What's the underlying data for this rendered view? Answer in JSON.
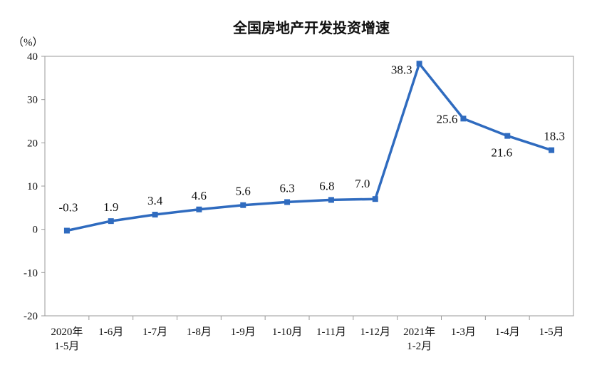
{
  "chart_data": {
    "type": "line",
    "title": "全国房地产开发投资增速",
    "ylabel": "（%）",
    "xlabel": "",
    "ylim": [
      -20,
      40
    ],
    "yticks": [
      40,
      30,
      20,
      10,
      0,
      -10,
      -20
    ],
    "grid": false,
    "legend": "none",
    "categories": [
      [
        "2020年",
        "1-5月"
      ],
      [
        "1-6月"
      ],
      [
        "1-7月"
      ],
      [
        "1-8月"
      ],
      [
        "1-9月"
      ],
      [
        "1-10月"
      ],
      [
        "1-11月"
      ],
      [
        "1-12月"
      ],
      [
        "2021年",
        "1-2月"
      ],
      [
        "1-3月"
      ],
      [
        "1-4月"
      ],
      [
        "1-5月"
      ]
    ],
    "series": [
      {
        "values": [
          -0.3,
          1.9,
          3.4,
          4.6,
          5.6,
          6.3,
          6.8,
          7.0,
          38.3,
          25.6,
          21.6,
          18.3
        ],
        "labels": [
          "-0.3",
          "1.9",
          "3.4",
          "4.6",
          "5.6",
          "6.3",
          "6.8",
          "7.0",
          "38.3",
          "25.6",
          "21.6",
          "18.3"
        ],
        "color": "#2f6bbf"
      }
    ]
  }
}
